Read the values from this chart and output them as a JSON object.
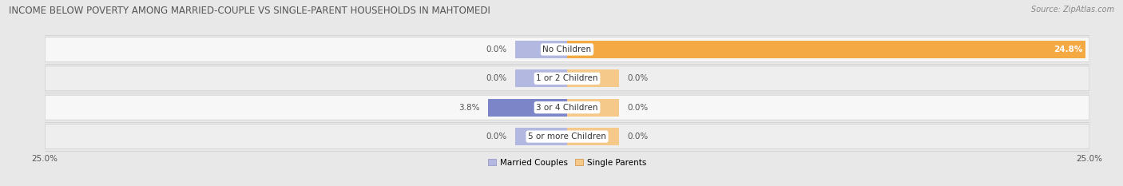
{
  "title": "INCOME BELOW POVERTY AMONG MARRIED-COUPLE VS SINGLE-PARENT HOUSEHOLDS IN MAHTOMEDI",
  "source": "Source: ZipAtlas.com",
  "categories": [
    "No Children",
    "1 or 2 Children",
    "3 or 4 Children",
    "5 or more Children"
  ],
  "married_values": [
    0.0,
    0.0,
    3.8,
    0.0
  ],
  "single_values": [
    24.8,
    0.0,
    0.0,
    0.0
  ],
  "xlim": 25.0,
  "married_color": "#7b85c8",
  "married_color_light": "#b3b8e0",
  "single_color": "#f5a942",
  "single_color_light": "#f5c98a",
  "row_colors": [
    "#f7f7f7",
    "#eeeeee",
    "#f7f7f7",
    "#eeeeee"
  ],
  "bar_height": 0.6,
  "stub_size": 2.5,
  "title_fontsize": 8.5,
  "label_fontsize": 7.5,
  "tick_fontsize": 7.5,
  "legend_fontsize": 7.5,
  "source_fontsize": 7,
  "value_label_color": "#555555",
  "cat_label_color": "#333333"
}
